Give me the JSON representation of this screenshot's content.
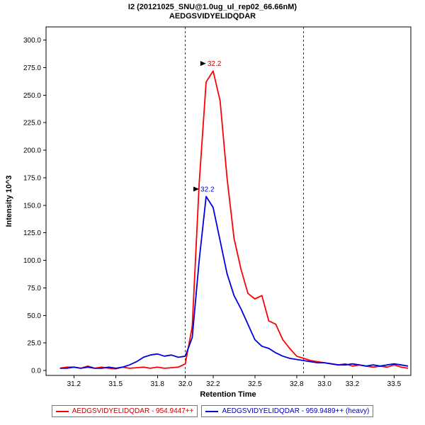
{
  "window": {
    "title_line1": "I2 (20121025_SNU@1.0ug_ul_rep02_66.66nM)",
    "title_line2": "AEDGSVIDYELIDQDAR"
  },
  "legend": {
    "items": [
      {
        "label": "AEDGSVIDYELIDQDAR - 954.9447++",
        "color": "#ff0000",
        "text_color": "#cc0000"
      },
      {
        "label": "AEDGSVIDYELIDQDAR - 959.9489++ (heavy)",
        "color": "#0000dd",
        "text_color": "#0000bb"
      }
    ]
  },
  "chart_data": {
    "type": "line",
    "title": "I2 (20121025_SNU@1.0ug_ul_rep02_66.66nM)",
    "subtitle": "AEDGSVIDYELIDQDAR",
    "xlabel": "Retention Time",
    "ylabel": "Intensity 10^3",
    "xlim": [
      31.0,
      33.62
    ],
    "ylim": [
      -4.5,
      312
    ],
    "grid": false,
    "legend_position": "bottom",
    "xticks": [
      31.2,
      31.5,
      31.8,
      32.0,
      32.2,
      32.5,
      32.8,
      33.0,
      33.2,
      33.5
    ],
    "xtick_labels": [
      "31.2",
      "31.5",
      "31.8",
      "32.0",
      "32.2",
      "32.5",
      "32.8",
      "33.0",
      "33.2",
      "33.5"
    ],
    "yticks": [
      0,
      25,
      50,
      75,
      100,
      125,
      150,
      175,
      200,
      225,
      250,
      275,
      300
    ],
    "ytick_labels": [
      "0.0",
      "25.0",
      "50.0",
      "75.0",
      "100.0",
      "125.0",
      "150.0",
      "175.0",
      "200.0",
      "225.0",
      "250.0",
      "275.0",
      "300.0"
    ],
    "boundaries": [
      32.0,
      32.85
    ],
    "x": [
      31.1,
      31.15,
      31.2,
      31.25,
      31.3,
      31.35,
      31.4,
      31.45,
      31.5,
      31.55,
      31.6,
      31.65,
      31.7,
      31.75,
      31.8,
      31.85,
      31.9,
      31.95,
      32.0,
      32.05,
      32.1,
      32.15,
      32.2,
      32.25,
      32.3,
      32.35,
      32.4,
      32.45,
      32.5,
      32.55,
      32.6,
      32.65,
      32.7,
      32.75,
      32.8,
      32.85,
      32.9,
      32.95,
      33.0,
      33.05,
      33.1,
      33.15,
      33.2,
      33.25,
      33.3,
      33.35,
      33.4,
      33.45,
      33.5,
      33.55,
      33.6
    ],
    "series": [
      {
        "id": "light",
        "name": "AEDGSVIDYELIDQDAR - 954.9447++",
        "color": "#ff0000",
        "peak_rt": "32.2",
        "values": [
          2,
          3,
          3,
          2,
          4,
          2,
          3,
          2,
          1.5,
          3,
          2,
          2.5,
          3,
          2,
          3,
          2,
          2.5,
          3,
          6,
          40,
          170,
          262,
          272,
          245,
          175,
          120,
          92,
          70,
          65,
          68,
          45,
          42,
          28,
          20,
          13,
          11,
          9,
          8,
          7,
          6,
          5,
          6,
          4,
          5,
          4,
          3,
          4,
          3,
          5,
          3,
          2
        ]
      },
      {
        "id": "heavy",
        "name": "AEDGSVIDYELIDQDAR - 959.9489++ (heavy)",
        "color": "#0000dd",
        "peak_rt": "32.2",
        "values": [
          2,
          2,
          3,
          2,
          3,
          2,
          2,
          3,
          2,
          3,
          5,
          8,
          12,
          14,
          15,
          13,
          14,
          12,
          13,
          30,
          100,
          158,
          148,
          118,
          88,
          68,
          56,
          42,
          28,
          22,
          20,
          16,
          13,
          11,
          10,
          9,
          8,
          7,
          7,
          6,
          5,
          5,
          6,
          5,
          4,
          5,
          4,
          5,
          6,
          5,
          4
        ]
      }
    ],
    "annotations": [
      {
        "label": "32.2",
        "x": 32.2,
        "y": 272,
        "color": "#cc0000"
      },
      {
        "label": "32.2",
        "x": 32.15,
        "y": 158,
        "color": "#0000bb"
      }
    ]
  }
}
